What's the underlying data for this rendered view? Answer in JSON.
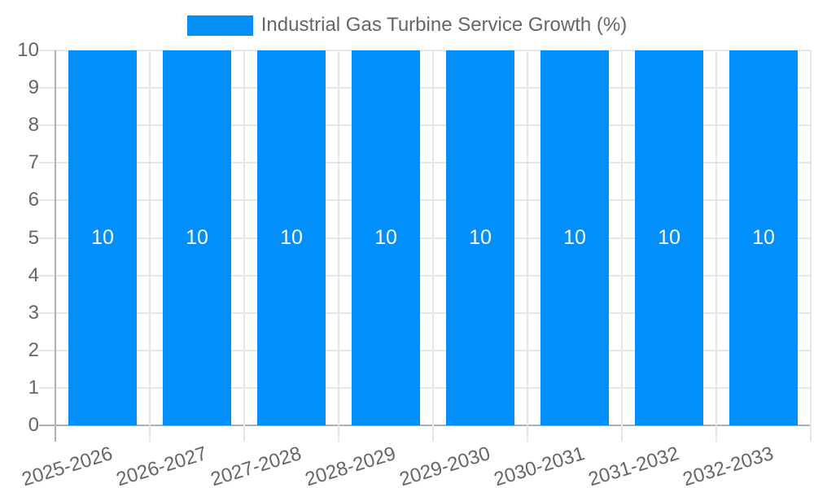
{
  "chart_data": {
    "type": "bar",
    "title": "Industrial Gas Turbine Service Growth (%)",
    "legend_position": "top",
    "categories": [
      "2025-2026",
      "2026-2027",
      "2027-2028",
      "2028-2029",
      "2029-2030",
      "2030-2031",
      "2031-2032",
      "2032-2033"
    ],
    "values": [
      10,
      10,
      10,
      10,
      10,
      10,
      10,
      10
    ],
    "data_labels": [
      "10",
      "10",
      "10",
      "10",
      "10",
      "10",
      "10",
      "10"
    ],
    "xlabel": "",
    "ylabel": "",
    "ylim": [
      0,
      10
    ],
    "yticks": [
      0,
      1,
      2,
      3,
      4,
      5,
      6,
      7,
      8,
      9,
      10
    ],
    "grid": true,
    "colors": {
      "bar": "#008FFB",
      "axis_text": "#666666",
      "legend_text": "#666666",
      "gridline": "#e6e6e6",
      "axis_line": "#b0b0b0",
      "data_label": "#ffffff",
      "background": "#ffffff"
    }
  }
}
